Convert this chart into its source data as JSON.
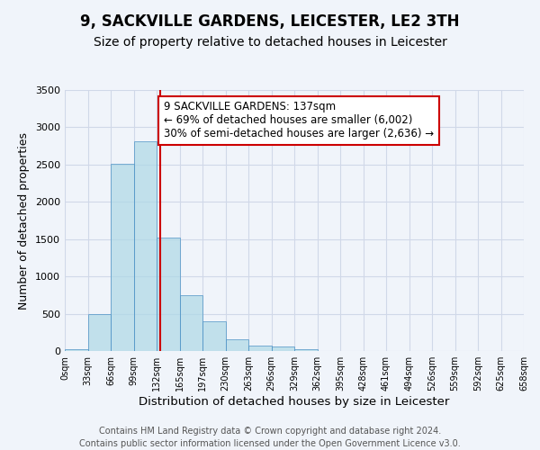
{
  "title": "9, SACKVILLE GARDENS, LEICESTER, LE2 3TH",
  "subtitle": "Size of property relative to detached houses in Leicester",
  "xlabel": "Distribution of detached houses by size in Leicester",
  "ylabel": "Number of detached properties",
  "bar_left_edges": [
    0,
    33,
    66,
    99,
    132,
    165,
    198,
    231,
    264,
    297,
    330,
    363,
    396,
    429,
    462,
    495,
    528,
    561,
    594,
    627
  ],
  "bar_heights": [
    25,
    490,
    2510,
    2810,
    1520,
    750,
    400,
    155,
    75,
    55,
    30,
    0,
    0,
    0,
    0,
    0,
    0,
    0,
    0,
    0
  ],
  "bin_width": 33,
  "bar_color": "#add8e6",
  "bar_edge_color": "#4a90c4",
  "bar_alpha": 0.7,
  "vline_x": 137,
  "vline_color": "#cc0000",
  "annotation_text": "9 SACKVILLE GARDENS: 137sqm\n← 69% of detached houses are smaller (6,002)\n30% of semi-detached houses are larger (2,636) →",
  "annotation_box_color": "#ffffff",
  "annotation_box_edge_color": "#cc0000",
  "xlim": [
    0,
    660
  ],
  "ylim": [
    0,
    3500
  ],
  "yticks": [
    0,
    500,
    1000,
    1500,
    2000,
    2500,
    3000,
    3500
  ],
  "xtick_labels": [
    "0sqm",
    "33sqm",
    "66sqm",
    "99sqm",
    "132sqm",
    "165sqm",
    "197sqm",
    "230sqm",
    "263sqm",
    "296sqm",
    "329sqm",
    "362sqm",
    "395sqm",
    "428sqm",
    "461sqm",
    "494sqm",
    "526sqm",
    "559sqm",
    "592sqm",
    "625sqm",
    "658sqm"
  ],
  "xtick_positions": [
    0,
    33,
    66,
    99,
    132,
    165,
    198,
    231,
    264,
    297,
    330,
    363,
    396,
    429,
    462,
    495,
    528,
    561,
    594,
    627,
    660
  ],
  "grid_color": "#d0d8e8",
  "background_color": "#f0f4fa",
  "footer_text": "Contains HM Land Registry data © Crown copyright and database right 2024.\nContains public sector information licensed under the Open Government Licence v3.0.",
  "title_fontsize": 12,
  "subtitle_fontsize": 10,
  "xlabel_fontsize": 9.5,
  "ylabel_fontsize": 9,
  "annotation_fontsize": 8.5,
  "footer_fontsize": 7
}
